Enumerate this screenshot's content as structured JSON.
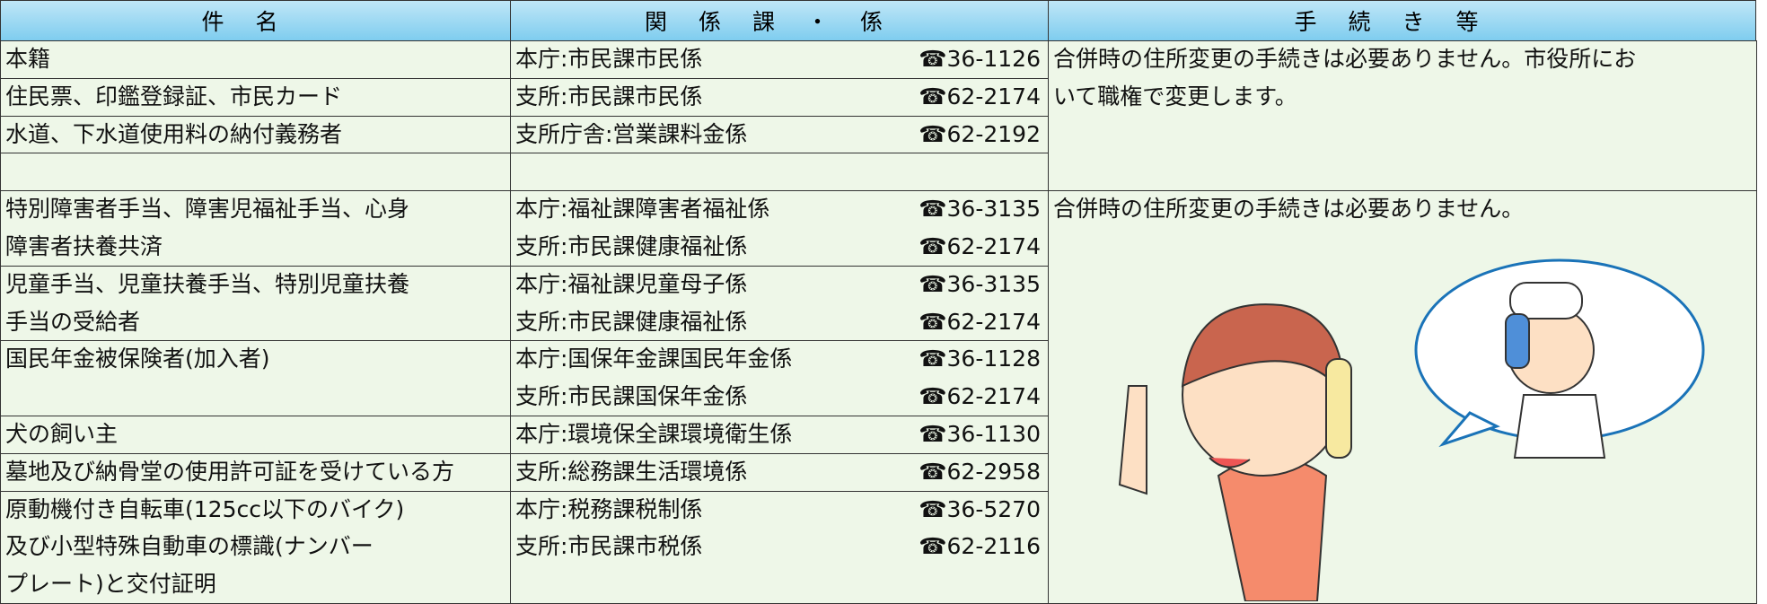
{
  "header": {
    "item": "件名",
    "department": "関係課・係",
    "procedure": "手続き等"
  },
  "sections": [
    {
      "items": [
        {
          "lines": [
            "本籍"
          ],
          "contacts": [
            {
              "office": "本庁:市民課市民係",
              "tel": "☎36-1126"
            }
          ]
        },
        {
          "lines": [
            "住民票、印鑑登録証、市民カード"
          ],
          "contacts": [
            {
              "office": "支所:市民課市民係",
              "tel": "☎62-2174"
            }
          ]
        },
        {
          "lines": [
            "水道、下水道使用料の納付義務者"
          ],
          "contacts": [
            {
              "office": "支所庁舎:営業課料金係",
              "tel": "☎62-2192"
            }
          ]
        }
      ],
      "procedure": [
        "合併時の住所変更の手続きは必要ありません。市役所にお",
        "いて職権で変更します。"
      ]
    },
    {
      "items": [
        {
          "lines": [
            "特別障害者手当、障害児福祉手当、心身",
            "障害者扶養共済"
          ],
          "contacts": [
            {
              "office": "本庁:福祉課障害者福祉係",
              "tel": "☎36-3135"
            },
            {
              "office": "支所:市民課健康福祉係",
              "tel": "☎62-2174"
            }
          ]
        },
        {
          "lines": [
            "児童手当、児童扶養手当、特別児童扶養",
            "手当の受給者"
          ],
          "contacts": [
            {
              "office": "本庁:福祉課児童母子係",
              "tel": "☎36-3135"
            },
            {
              "office": "支所:市民課健康福祉係",
              "tel": "☎62-2174"
            }
          ]
        },
        {
          "lines": [
            "国民年金被保険者(加入者)"
          ],
          "contacts": [
            {
              "office": "本庁:国保年金課国民年金係",
              "tel": "☎36-1128"
            },
            {
              "office": "支所:市民課国保年金係",
              "tel": "☎62-2174"
            }
          ]
        },
        {
          "lines": [
            "犬の飼い主"
          ],
          "contacts": [
            {
              "office": "本庁:環境保全課環境衛生係",
              "tel": "☎36-1130"
            }
          ]
        },
        {
          "lines": [
            "墓地及び納骨堂の使用許可証を受けている方"
          ],
          "contacts": [
            {
              "office": "支所:総務課生活環境係",
              "tel": "☎62-2958"
            }
          ]
        },
        {
          "lines": [
            "原動機付き自転車(125cc以下のバイク)",
            "及び小型特殊自動車の標識(ナンバー",
            "プレート)と交付証明"
          ],
          "contacts": [
            {
              "office": "本庁:税務課税制係",
              "tel": "☎36-5270"
            },
            {
              "office": "支所:市民課市税係",
              "tel": "☎62-2116"
            }
          ]
        }
      ],
      "procedure": [
        "合併時の住所変更の手続きは必要ありません。"
      ]
    }
  ]
}
